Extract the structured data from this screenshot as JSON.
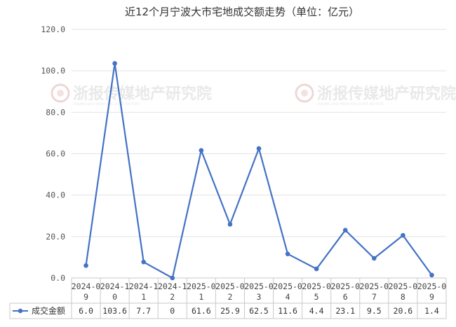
{
  "watermark": {
    "text": "浙报传媒地产研究院",
    "subtext": "ZHEJIANG DAILY MEDIA REAL ESTATE INSTITUTE"
  },
  "chart_data": {
    "type": "line",
    "title": "近12个月宁波大市宅地成交额走势（单位：亿元）",
    "categories": [
      [
        "2024-0",
        "9"
      ],
      [
        "2024-1",
        "0"
      ],
      [
        "2024-1",
        "1"
      ],
      [
        "2024-1",
        "2"
      ],
      [
        "2025-0",
        "1"
      ],
      [
        "2025-0",
        "2"
      ],
      [
        "2025-0",
        "3"
      ],
      [
        "2025-0",
        "4"
      ],
      [
        "2025-0",
        "5"
      ],
      [
        "2025-0",
        "6"
      ],
      [
        "2025-0",
        "7"
      ],
      [
        "2025-0",
        "8"
      ],
      [
        "2025-0",
        "9"
      ]
    ],
    "series": [
      {
        "name": "成交金额",
        "values": [
          6.0,
          103.6,
          7.7,
          0,
          61.6,
          25.9,
          62.5,
          11.6,
          4.4,
          23.1,
          9.5,
          20.6,
          1.4
        ],
        "labels": [
          "6.0",
          "103.6",
          "7.7",
          "0",
          "61.6",
          "25.9",
          "62.5",
          "11.6",
          "4.4",
          "23.1",
          "9.5",
          "20.6",
          "1.4"
        ],
        "color": "#4472c4"
      }
    ],
    "yticks": [
      "0.0",
      "20.0",
      "40.0",
      "60.0",
      "80.0",
      "100.0",
      "120.0"
    ],
    "ylim": [
      0,
      120
    ],
    "grid": true,
    "legend": "data-table"
  }
}
